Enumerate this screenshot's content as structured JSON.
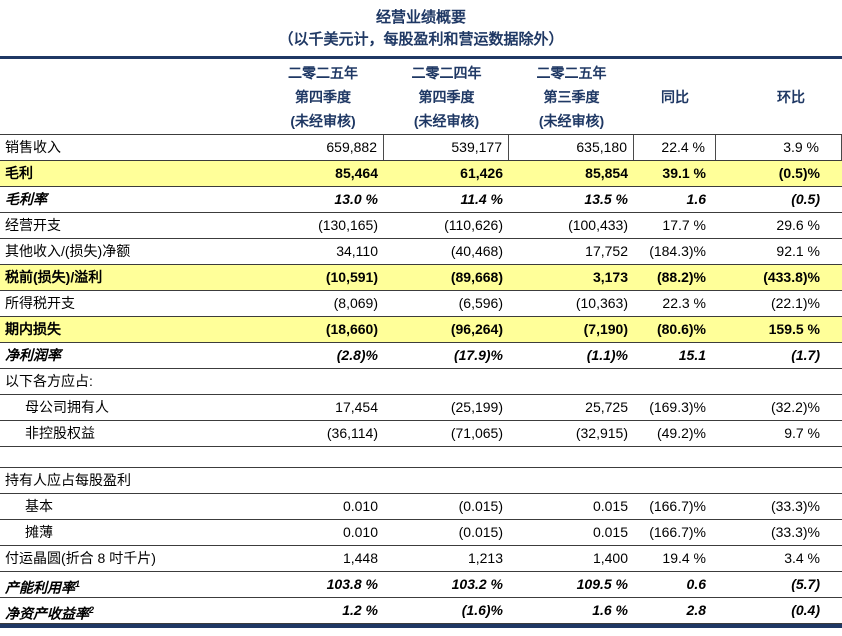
{
  "title": "经营业绩概要",
  "subtitle": "（以千美元计，每股盈利和营运数据除外）",
  "colors": {
    "accent_navy": "#1f3864",
    "highlight_yellow": "#ffff99",
    "row_border": "#3c3c3c"
  },
  "header": {
    "columns": [
      {
        "lines": [
          "二零二五年",
          "第四季度",
          "(未经审核)"
        ]
      },
      {
        "lines": [
          "二零二四年",
          "第四季度",
          "(未经审核)"
        ]
      },
      {
        "lines": [
          "二零二五年",
          "第三季度",
          "(未经审核)"
        ]
      },
      {
        "lines": [
          "",
          "同比",
          ""
        ]
      },
      {
        "lines": [
          "",
          "环比",
          ""
        ]
      }
    ]
  },
  "rows": [
    {
      "label": "销售收入",
      "style": "normal",
      "highlight": false,
      "ticks": true,
      "indent": false,
      "values": [
        "659,882",
        "539,177",
        "635,180",
        "22.4 %",
        "3.9 %"
      ]
    },
    {
      "label": "毛利",
      "style": "bold",
      "highlight": true,
      "indent": false,
      "values": [
        "85,464",
        "61,426",
        "85,854",
        "39.1 %",
        "(0.5)%"
      ]
    },
    {
      "label": "毛利率",
      "style": "bold-italic",
      "highlight": false,
      "indent": false,
      "values": [
        "13.0 %",
        "11.4 %",
        "13.5 %",
        "1.6",
        "(0.5)"
      ]
    },
    {
      "label": "经营开支",
      "style": "normal",
      "highlight": false,
      "indent": false,
      "values": [
        "(130,165)",
        "(110,626)",
        "(100,433)",
        "17.7 %",
        "29.6 %"
      ]
    },
    {
      "label": "其他收入/(损失)净额",
      "style": "normal",
      "highlight": false,
      "indent": false,
      "values": [
        "34,110",
        "(40,468)",
        "17,752",
        "(184.3)%",
        "92.1 %"
      ]
    },
    {
      "label": "税前(损失)/溢利",
      "style": "bold",
      "highlight": true,
      "indent": false,
      "values": [
        "(10,591)",
        "(89,668)",
        "3,173",
        "(88.2)%",
        "(433.8)%"
      ]
    },
    {
      "label": "所得税开支",
      "style": "normal",
      "highlight": false,
      "indent": false,
      "values": [
        "(8,069)",
        "(6,596)",
        "(10,363)",
        "22.3 %",
        "(22.1)%"
      ]
    },
    {
      "label": "期内损失",
      "style": "bold",
      "highlight": true,
      "indent": false,
      "values": [
        "(18,660)",
        "(96,264)",
        "(7,190)",
        "(80.6)%",
        "159.5 %"
      ]
    },
    {
      "label": "净利润率",
      "style": "bold-italic",
      "highlight": false,
      "indent": false,
      "values": [
        "(2.8)%",
        "(17.9)%",
        "(1.1)%",
        "15.1",
        "(1.7)"
      ]
    },
    {
      "label": "以下各方应占:",
      "style": "normal",
      "highlight": false,
      "indent": false,
      "values": [
        "",
        "",
        "",
        "",
        ""
      ]
    },
    {
      "label": "母公司拥有人",
      "style": "normal",
      "highlight": false,
      "indent": true,
      "values": [
        "17,454",
        "(25,199)",
        "25,725",
        "(169.3)%",
        "(32.2)%"
      ]
    },
    {
      "label": "非控股权益",
      "style": "normal",
      "highlight": false,
      "indent": true,
      "values": [
        "(36,114)",
        "(71,065)",
        "(32,915)",
        "(49.2)%",
        "9.7 %"
      ]
    },
    {
      "type": "spacer"
    },
    {
      "label": "持有人应占每股盈利",
      "style": "normal",
      "highlight": false,
      "indent": false,
      "values": [
        "",
        "",
        "",
        "",
        ""
      ]
    },
    {
      "label": "基本",
      "style": "normal",
      "highlight": false,
      "indent": true,
      "values": [
        "0.010",
        "(0.015)",
        "0.015",
        "(166.7)%",
        "(33.3)%"
      ]
    },
    {
      "label": "摊薄",
      "style": "normal",
      "highlight": false,
      "indent": true,
      "values": [
        "0.010",
        "(0.015)",
        "0.015",
        "(166.7)%",
        "(33.3)%"
      ]
    },
    {
      "label": "付运晶圆(折合 8 吋千片)",
      "style": "normal",
      "highlight": false,
      "indent": false,
      "values": [
        "1,448",
        "1,213",
        "1,400",
        "19.4 %",
        "3.4 %"
      ]
    },
    {
      "label": "产能利用率",
      "sup": "1",
      "style": "bold-italic",
      "highlight": false,
      "indent": false,
      "values": [
        "103.8 %",
        "103.2 %",
        "109.5 %",
        "0.6",
        "(5.7)"
      ]
    },
    {
      "label": "净资产收益率",
      "sup": "2",
      "style": "bold-italic",
      "highlight": false,
      "indent": false,
      "values": [
        "1.2 %",
        "(1.6)%",
        "1.6 %",
        "2.8",
        "(0.4)"
      ]
    }
  ]
}
